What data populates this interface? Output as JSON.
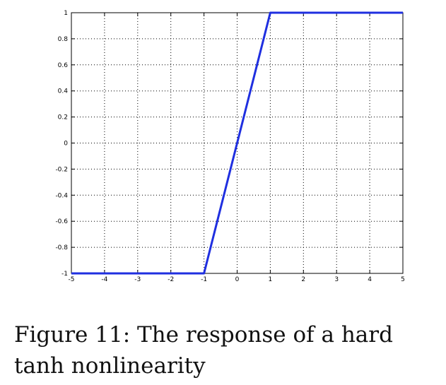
{
  "chart_data": {
    "type": "line",
    "title": "",
    "xlabel": "",
    "ylabel": "",
    "xlim": [
      -5,
      5
    ],
    "ylim": [
      -1,
      1
    ],
    "grid": true,
    "x_ticks": [
      -5,
      -4,
      -3,
      -2,
      -1,
      0,
      1,
      2,
      3,
      4,
      5
    ],
    "y_ticks": [
      -1,
      -0.8,
      -0.6,
      -0.4,
      -0.2,
      0,
      0.2,
      0.4,
      0.6,
      0.8,
      1
    ],
    "x_tick_labels": [
      "-5",
      "-4",
      "-3",
      "-2",
      "-1",
      "0",
      "1",
      "2",
      "3",
      "4",
      "5"
    ],
    "y_tick_labels": [
      "-1",
      "-0.8",
      "-0.6",
      "-0.4",
      "-0.2",
      "0",
      "0.2",
      "0.4",
      "0.6",
      "0.8",
      "1"
    ],
    "series": [
      {
        "x": [
          -5,
          -1,
          1,
          5
        ],
        "y": [
          -1,
          -1,
          1,
          1
        ],
        "color": "#1f2fe0"
      }
    ]
  },
  "caption": "Figure 11: The response of a hard tanh nonlinearity"
}
